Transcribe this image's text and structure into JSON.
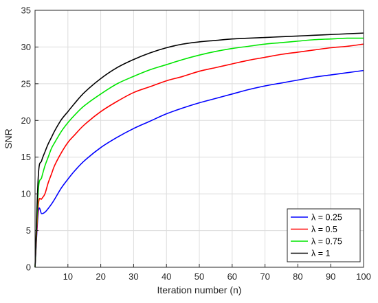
{
  "chart_data": {
    "type": "line",
    "xlabel": "Iteration number (n)",
    "ylabel": "SNR",
    "xlim": [
      0,
      100
    ],
    "ylim": [
      0,
      35
    ],
    "xticks": [
      10,
      20,
      30,
      40,
      50,
      60,
      70,
      80,
      90,
      100
    ],
    "yticks": [
      0,
      5,
      10,
      15,
      20,
      25,
      30,
      35
    ],
    "grid": true,
    "legend_position": "bottom-right",
    "series": [
      {
        "name": "λ = 0.25",
        "color": "#0000ff",
        "x": [
          0,
          1,
          2,
          3,
          4,
          5,
          6,
          8,
          10,
          12,
          15,
          20,
          25,
          30,
          35,
          40,
          45,
          50,
          55,
          60,
          65,
          70,
          75,
          80,
          85,
          90,
          95,
          100
        ],
        "y": [
          0,
          7.6,
          7.3,
          7.5,
          8.0,
          8.6,
          9.3,
          10.8,
          12.0,
          13.1,
          14.5,
          16.3,
          17.7,
          18.9,
          19.9,
          20.9,
          21.7,
          22.4,
          23.0,
          23.6,
          24.2,
          24.7,
          25.1,
          25.5,
          25.9,
          26.2,
          26.5,
          26.8
        ]
      },
      {
        "name": "λ = 0.5",
        "color": "#ff0000",
        "x": [
          0,
          1,
          2,
          3,
          4,
          5,
          6,
          8,
          10,
          12,
          15,
          20,
          25,
          30,
          35,
          40,
          45,
          50,
          55,
          60,
          65,
          70,
          75,
          80,
          85,
          90,
          95,
          100
        ],
        "y": [
          0,
          8.5,
          9.3,
          10.0,
          11.5,
          12.7,
          13.9,
          15.6,
          17.0,
          18.0,
          19.4,
          21.2,
          22.6,
          23.8,
          24.6,
          25.4,
          26.0,
          26.7,
          27.2,
          27.7,
          28.2,
          28.6,
          29.0,
          29.3,
          29.6,
          29.9,
          30.1,
          30.4
        ]
      },
      {
        "name": "λ = 0.75",
        "color": "#00e600",
        "x": [
          0,
          1,
          2,
          3,
          4,
          5,
          6,
          8,
          10,
          12,
          15,
          20,
          25,
          30,
          35,
          40,
          45,
          50,
          55,
          60,
          65,
          70,
          75,
          80,
          85,
          90,
          95,
          100
        ],
        "y": [
          0,
          10.5,
          12.2,
          13.8,
          15.0,
          16.2,
          17.0,
          18.5,
          19.7,
          20.7,
          22.0,
          23.6,
          25.0,
          26.0,
          26.9,
          27.6,
          28.3,
          28.9,
          29.4,
          29.8,
          30.1,
          30.4,
          30.6,
          30.8,
          31.0,
          31.1,
          31.2,
          31.2
        ]
      },
      {
        "name": "λ = 1",
        "color": "#000000",
        "x": [
          0,
          1,
          2,
          3,
          4,
          5,
          6,
          8,
          10,
          12,
          15,
          20,
          25,
          30,
          35,
          40,
          45,
          50,
          55,
          60,
          65,
          70,
          75,
          80,
          85,
          90,
          95,
          100
        ],
        "y": [
          0,
          12.5,
          14.5,
          15.7,
          16.8,
          17.7,
          18.6,
          20.1,
          21.2,
          22.3,
          23.8,
          25.7,
          27.2,
          28.3,
          29.2,
          29.9,
          30.4,
          30.7,
          30.9,
          31.1,
          31.2,
          31.3,
          31.4,
          31.5,
          31.6,
          31.7,
          31.8,
          31.9
        ]
      }
    ]
  }
}
